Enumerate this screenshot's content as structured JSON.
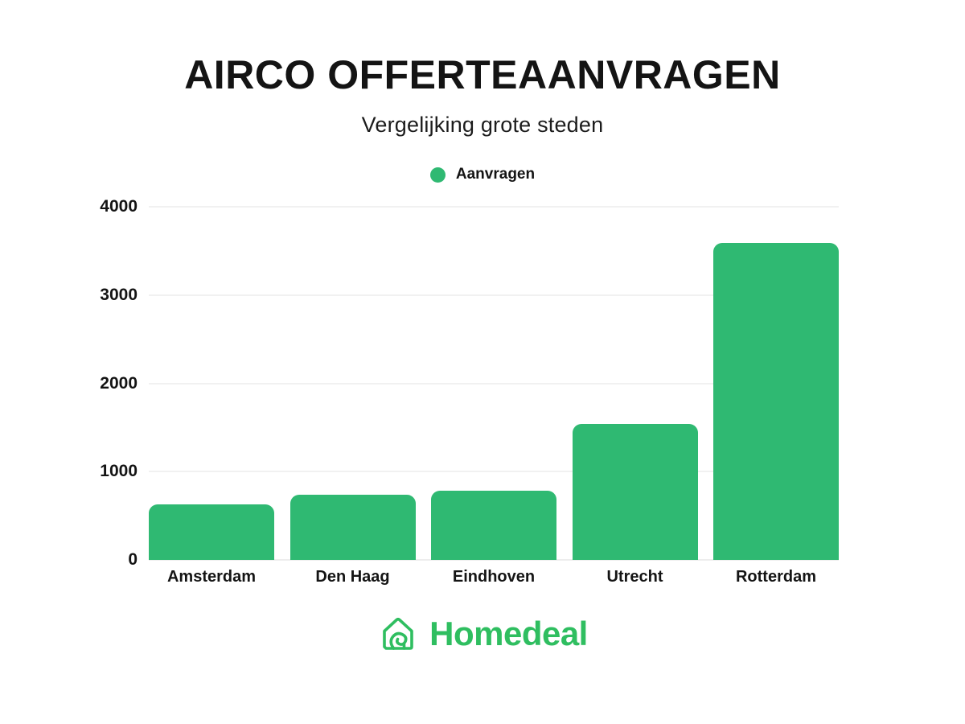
{
  "header": {
    "title": "AIRCO OFFERTEAANVRAGEN",
    "subtitle": "Vergelijking grote steden"
  },
  "legend": {
    "label": "Aanvragen",
    "dot_icon": "circle",
    "color": "#2fb972"
  },
  "footer": {
    "brand": "Homedeal",
    "logo_icon": "house-with-curl",
    "color": "#2fbe60"
  },
  "colors": {
    "bar_green": "#2fb972",
    "logo_green": "#2fbe60",
    "text_dark": "#141414",
    "gridline": "#f1f1f1"
  },
  "chart_data": {
    "type": "bar",
    "title": "AIRCO OFFERTEAANVRAGEN",
    "subtitle": "Vergelijking grote steden",
    "categories": [
      "Amsterdam",
      "Den Haag",
      "Eindhoven",
      "Utrecht",
      "Rotterdam"
    ],
    "series": [
      {
        "name": "Aanvragen",
        "values": [
          630,
          740,
          780,
          1540,
          3590
        ]
      }
    ],
    "xlabel": "",
    "ylabel": "",
    "ylim": [
      0,
      4000
    ],
    "yticks": [
      0,
      1000,
      2000,
      3000,
      4000
    ],
    "grid": "horizontal",
    "legend_position": "top",
    "bar_color": "#2fb972",
    "bar_corner_radius": 11
  }
}
